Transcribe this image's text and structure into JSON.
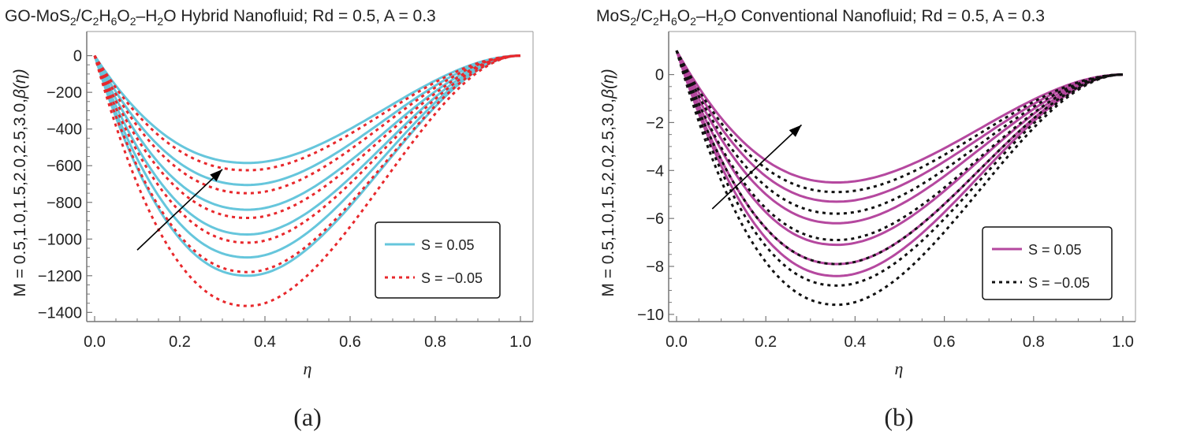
{
  "colors": {
    "solid_a": "#66c6dc",
    "dashed_a": "#e8282c",
    "solid_b": "#b5489f",
    "dashed_b": "#111111",
    "axis": "#777777",
    "frame": "#999999",
    "text": "#222222"
  },
  "chart_data": [
    {
      "type": "line",
      "panel": "(a)",
      "title": {
        "prefix": "GO-MoS",
        "s1": "2",
        "mid1": "/C",
        "s2": "2",
        "mid2": "H",
        "s3": "6",
        "mid3": "O",
        "s4": "2",
        "mid4": "–H",
        "s5": "2",
        "suffix": "O Hybrid Nanofluid; Rd = 0.5, A = 0.3"
      },
      "ylabel": "M = 0.5,1.0,1.5,2.0,2.5,3.0,",
      "ylabel_func": "β(η)",
      "xlabel": "η",
      "xlim": [
        0,
        1
      ],
      "ylim": [
        -1450,
        80
      ],
      "xticks": [
        0.0,
        0.2,
        0.4,
        0.6,
        0.8,
        1.0
      ],
      "xtick_labels": [
        "0.0",
        "0.2",
        "0.4",
        "0.6",
        "0.8",
        "1.0"
      ],
      "yticks": [
        0,
        -200,
        -400,
        -600,
        -800,
        -1000,
        -1200,
        -1400
      ],
      "ytick_labels": [
        "0",
        "−200",
        "−400",
        "−600",
        "−800",
        "−1000",
        "−1200",
        "−1400"
      ],
      "y_start": 0,
      "min_x": 0.36,
      "series": [
        {
          "name": "S = 0.05",
          "style": "solid",
          "minima": [
            -585,
            -705,
            -840,
            -975,
            -1100,
            -1200
          ]
        },
        {
          "name": "S = −0.05",
          "style": "dotted",
          "minima": [
            -625,
            -750,
            -885,
            -1020,
            -1180,
            -1365
          ]
        }
      ],
      "legend": [
        "S = 0.05",
        "S = −0.05"
      ],
      "legend_position": "right-lower",
      "arrow": {
        "from": [
          0.1,
          -1060
        ],
        "to": [
          0.3,
          -620
        ],
        "meaning": "increasing M"
      }
    },
    {
      "type": "line",
      "panel": "(b)",
      "title": {
        "prefix": "MoS",
        "s1": "2",
        "mid1": "/C",
        "s2": "2",
        "mid2": "H",
        "s3": "6",
        "mid3": "O",
        "s4": "2",
        "mid4": "–H",
        "s5": "2",
        "suffix": "O Conventional Nanofluid; Rd = 0.5, A = 0.3"
      },
      "ylabel": "M = 0.5,1.0,1.5,2.0,2.5,3.0,",
      "ylabel_func": "β(η)",
      "xlabel": "η",
      "xlim": [
        0,
        1
      ],
      "ylim": [
        -10.3,
        1.4
      ],
      "xticks": [
        0.0,
        0.2,
        0.4,
        0.6,
        0.8,
        1.0
      ],
      "xtick_labels": [
        "0.0",
        "0.2",
        "0.4",
        "0.6",
        "0.8",
        "1.0"
      ],
      "yticks": [
        0,
        -2,
        -4,
        -6,
        -8,
        -10
      ],
      "ytick_labels": [
        "0",
        "−2",
        "−4",
        "−6",
        "−8",
        "−10"
      ],
      "y_start": 1,
      "min_x": 0.36,
      "series": [
        {
          "name": "S = 0.05",
          "style": "solid",
          "minima": [
            -4.5,
            -5.3,
            -6.2,
            -7.1,
            -7.9,
            -8.4
          ]
        },
        {
          "name": "S = −0.05",
          "style": "dotted",
          "minima": [
            -4.9,
            -5.8,
            -6.9,
            -7.9,
            -8.8,
            -9.6
          ]
        }
      ],
      "legend": [
        "S = 0.05",
        "S = −0.05"
      ],
      "legend_position": "right-lower",
      "arrow": {
        "from": [
          0.08,
          -5.6
        ],
        "to": [
          0.28,
          -2.1
        ],
        "meaning": "increasing M"
      }
    }
  ]
}
